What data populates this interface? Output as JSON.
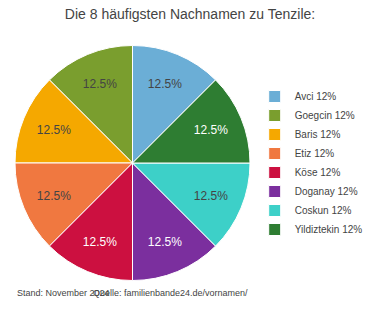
{
  "chart_data": {
    "type": "pie",
    "title": "Die 8 häufigsten Nachnamen zu Tenzile:",
    "categories": [
      "Avci 12%",
      "Goegcin 12%",
      "Baris 12%",
      "Etiz 12%",
      "Köse 12%",
      "Doganay 12%",
      "Coskun 12%",
      "Yildiztekin 12%"
    ],
    "values": [
      12.5,
      12.5,
      12.5,
      12.5,
      12.5,
      12.5,
      12.5,
      12.5
    ],
    "value_labels": [
      "12.5%",
      "12.5%",
      "12.5%",
      "12.5%",
      "12.5%",
      "12.5%",
      "12.5%",
      "12.5%"
    ],
    "data_labels": true,
    "colors": [
      "#6baed6",
      "#7a9e2e",
      "#f5a800",
      "#f07840",
      "#cc1040",
      "#7b2f9e",
      "#3dd0c8",
      "#2e7d32"
    ],
    "legend": "right",
    "annotations": [
      "Stand: November 2024",
      "Quelle: familienbande24.de/vornamen/"
    ]
  }
}
